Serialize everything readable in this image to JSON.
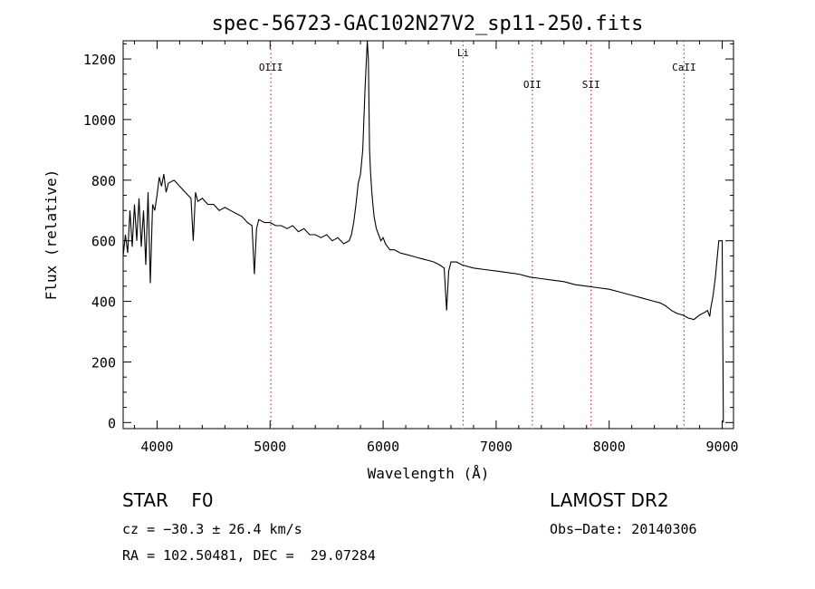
{
  "chart_data": {
    "type": "line",
    "title": "spec-56723-GAC102N27V2_sp11-250.fits",
    "xlabel": "Wavelength (Å)",
    "ylabel": "Flux (relative)",
    "xlim": [
      3700,
      9100
    ],
    "ylim": [
      -20,
      1260
    ],
    "x_ticks": [
      4000,
      5000,
      6000,
      7000,
      8000,
      9000
    ],
    "y_ticks": [
      0,
      200,
      400,
      600,
      800,
      1000,
      1200
    ],
    "grid": false,
    "line_color": "#000000",
    "marker_color": "#cc3333",
    "lines": [
      {
        "label": "OIII",
        "wavelength": 5007
      },
      {
        "label": "Li",
        "wavelength": 6708
      },
      {
        "label": "OII",
        "wavelength": 7320
      },
      {
        "label": "SII",
        "wavelength": 7840
      },
      {
        "label": "CaII",
        "wavelength": 8662
      }
    ],
    "series": [
      {
        "x": [
          3700,
          3720,
          3740,
          3760,
          3780,
          3800,
          3820,
          3840,
          3860,
          3880,
          3900,
          3920,
          3940,
          3960,
          3980,
          4000,
          4020,
          4040,
          4060,
          4080,
          4100,
          4150,
          4200,
          4250,
          4300,
          4320,
          4340,
          4360,
          4400,
          4450,
          4500,
          4550,
          4600,
          4650,
          4700,
          4750,
          4800,
          4840,
          4861,
          4880,
          4900,
          4950,
          5000,
          5050,
          5100,
          5150,
          5200,
          5250,
          5300,
          5350,
          5400,
          5450,
          5500,
          5550,
          5600,
          5650,
          5700,
          5720,
          5740,
          5760,
          5780,
          5800,
          5820,
          5840,
          5860,
          5870,
          5880,
          5890,
          5900,
          5910,
          5920,
          5940,
          5960,
          5980,
          6000,
          6020,
          6040,
          6060,
          6100,
          6150,
          6200,
          6250,
          6300,
          6350,
          6400,
          6450,
          6500,
          6540,
          6562,
          6580,
          6600,
          6650,
          6700,
          6750,
          6800,
          6900,
          7000,
          7100,
          7200,
          7300,
          7400,
          7500,
          7600,
          7700,
          7800,
          7900,
          8000,
          8100,
          8200,
          8300,
          8400,
          8450,
          8500,
          8550,
          8600,
          8650,
          8700,
          8750,
          8800,
          8850,
          8870,
          8890,
          8900,
          8920,
          8940,
          8960,
          8970,
          8980,
          9000,
          9010
        ],
        "y": [
          550,
          620,
          560,
          700,
          580,
          720,
          600,
          740,
          580,
          700,
          520,
          760,
          460,
          720,
          700,
          750,
          810,
          780,
          820,
          760,
          790,
          800,
          780,
          760,
          740,
          600,
          760,
          730,
          740,
          720,
          720,
          700,
          710,
          700,
          690,
          680,
          660,
          650,
          490,
          640,
          670,
          660,
          660,
          650,
          650,
          640,
          650,
          630,
          640,
          620,
          620,
          610,
          620,
          600,
          610,
          590,
          600,
          620,
          660,
          720,
          790,
          820,
          900,
          1100,
          1260,
          1200,
          900,
          820,
          760,
          720,
          680,
          640,
          620,
          600,
          610,
          590,
          580,
          570,
          570,
          560,
          555,
          550,
          545,
          540,
          535,
          530,
          520,
          510,
          370,
          500,
          530,
          530,
          520,
          515,
          510,
          505,
          500,
          495,
          490,
          480,
          475,
          470,
          465,
          455,
          450,
          445,
          440,
          430,
          420,
          410,
          400,
          395,
          385,
          370,
          360,
          355,
          345,
          340,
          355,
          365,
          370,
          350,
          380,
          420,
          480,
          560,
          600,
          600,
          600,
          0
        ]
      }
    ]
  },
  "info": {
    "class": "STAR    F0",
    "survey": "LAMOST DR2",
    "cz": "cz = −30.3 ± 26.4 km/s",
    "obs_date": "Obs−Date: 20140306",
    "coords": "RA = 102.50481, DEC =  29.07284"
  }
}
